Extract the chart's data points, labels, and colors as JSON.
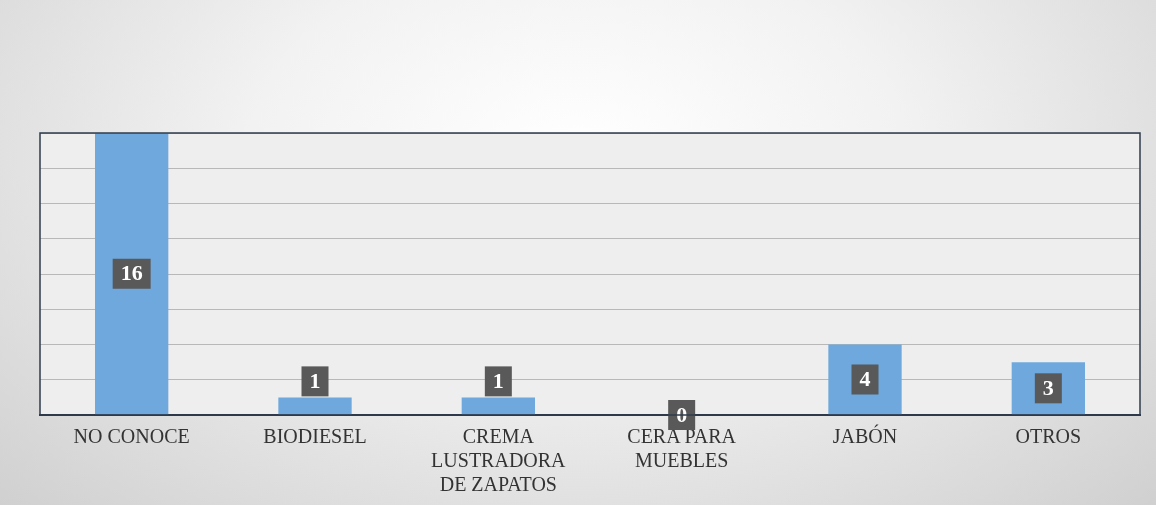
{
  "chart_data": {
    "type": "bar",
    "categories": [
      "NO CONOCE",
      "BIODIESEL",
      "CREMA LUSTRADORA DE ZAPATOS",
      "CERA PARA MUEBLES",
      "JABÓN",
      "OTROS"
    ],
    "values": [
      16,
      1,
      1,
      0,
      4,
      3
    ],
    "color": "#6fa8dc",
    "ylim": [
      0,
      16
    ],
    "yticks": [
      {
        "value": 0,
        "label": null
      },
      {
        "value": 2,
        "label": null
      },
      {
        "value": 4,
        "label": null
      },
      {
        "value": 6,
        "label": null
      },
      {
        "value": 8,
        "label": null
      },
      {
        "value": 10,
        "label": null
      },
      {
        "value": 12,
        "label": null
      },
      {
        "value": 14,
        "label": null
      },
      {
        "value": 16,
        "label": null
      }
    ],
    "grid": "y",
    "tick_labels": "x",
    "data_labels": true
  }
}
